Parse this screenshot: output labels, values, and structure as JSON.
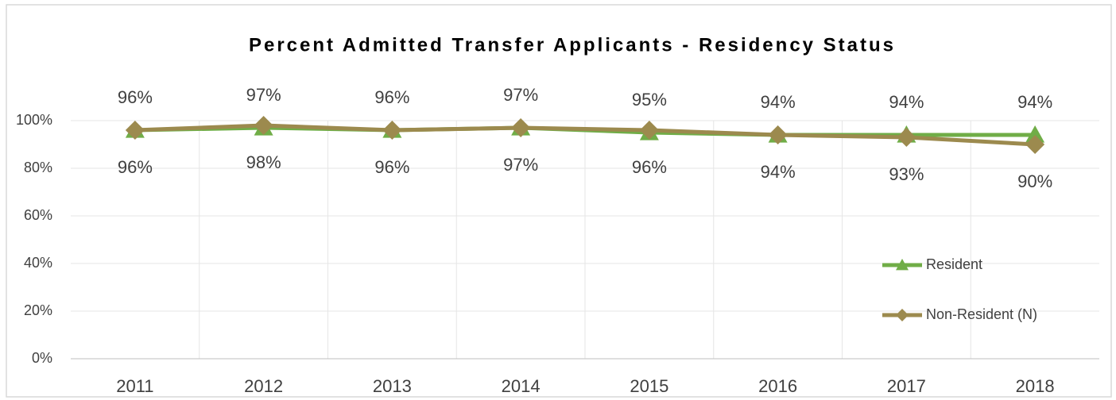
{
  "chart_data": {
    "type": "line",
    "title": "Percent Admitted Transfer Applicants - Residency Status",
    "categories": [
      "2011",
      "2012",
      "2013",
      "2014",
      "2015",
      "2016",
      "2017",
      "2018"
    ],
    "series": [
      {
        "name": "Resident",
        "color": "#70ad47",
        "marker": "triangle",
        "values": [
          96,
          97,
          96,
          97,
          95,
          94,
          94,
          94
        ],
        "value_labels": [
          "96%",
          "97%",
          "96%",
          "97%",
          "95%",
          "94%",
          "94%",
          "94%"
        ]
      },
      {
        "name": "Non-Resident (N)",
        "color": "#9c8a4e",
        "marker": "diamond",
        "values": [
          96,
          98,
          96,
          97,
          96,
          94,
          93,
          90
        ],
        "value_labels": [
          "96%",
          "98%",
          "96%",
          "97%",
          "96%",
          "94%",
          "93%",
          "90%"
        ]
      }
    ],
    "ylim": [
      0,
      100
    ],
    "yticks": [
      {
        "value": 0,
        "label": "0%"
      },
      {
        "value": 20,
        "label": "20%"
      },
      {
        "value": 40,
        "label": "40%"
      },
      {
        "value": 60,
        "label": "60%"
      },
      {
        "value": 80,
        "label": "80%"
      },
      {
        "value": 100,
        "label": "100%"
      }
    ],
    "grid": true,
    "legend": "right"
  }
}
